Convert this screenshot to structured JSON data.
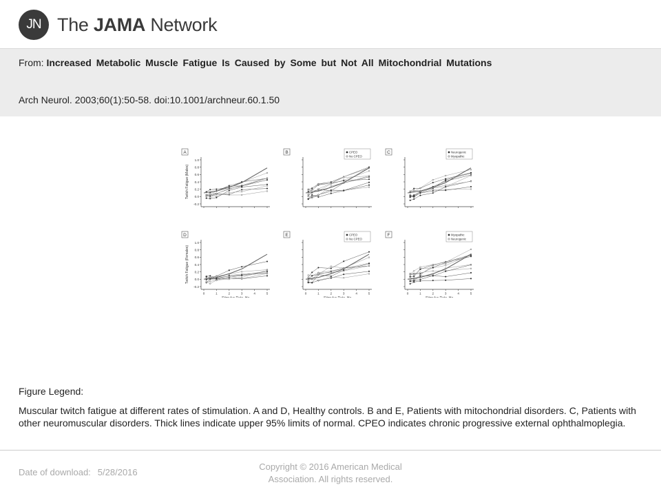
{
  "brand": {
    "badge": "JN",
    "name_prefix": "The ",
    "name_bold": "JAMA",
    "name_suffix": " Network"
  },
  "header": {
    "from_label": "From:",
    "title": "Increased Metabolic Muscle Fatigue Is Caused by Some but Not All Mitochondrial Mutations",
    "citation": "Arch Neurol. 2003;60(1):50-58. doi:10.1001/archneur.60.1.50"
  },
  "figure": {
    "panels": [
      {
        "letter": "A",
        "ylabel": "Twitch Fatigue (Males)",
        "legend": []
      },
      {
        "letter": "B",
        "ylabel": "",
        "legend": [
          "CPEO",
          "No CPEO"
        ]
      },
      {
        "letter": "C",
        "ylabel": "",
        "legend": [
          "Neurogenic",
          "Myopathic"
        ]
      },
      {
        "letter": "D",
        "ylabel": "Twitch Fatigue (Females)",
        "legend": []
      },
      {
        "letter": "E",
        "ylabel": "",
        "legend": [
          "CPEO",
          "No CPEO"
        ]
      },
      {
        "letter": "F",
        "ylabel": "",
        "legend": [
          "Myopathic",
          "Neurogenic"
        ]
      }
    ],
    "xlabel": "Stimulus Rate, Hz",
    "xticks": [
      "0",
      "1",
      "2",
      "3",
      "4",
      "5"
    ],
    "yticks": [
      "1.0",
      "0.8",
      "0.6",
      "0.4",
      "0.2",
      "0.0",
      "-0.2"
    ]
  },
  "legend": {
    "title": "Figure Legend:",
    "text": "Muscular twitch fatigue at different rates of stimulation. A and D, Healthy controls. B and E, Patients with mitochondrial disorders. C, Patients with other neuromuscular disorders. Thick lines indicate upper 95% limits of normal. CPEO indicates chronic progressive external ophthalmoplegia."
  },
  "footer": {
    "download_label": "Date of download:",
    "download_date": "5/28/2016",
    "copyright": "Copyright © 2016 American Medical Association. All rights reserved."
  }
}
